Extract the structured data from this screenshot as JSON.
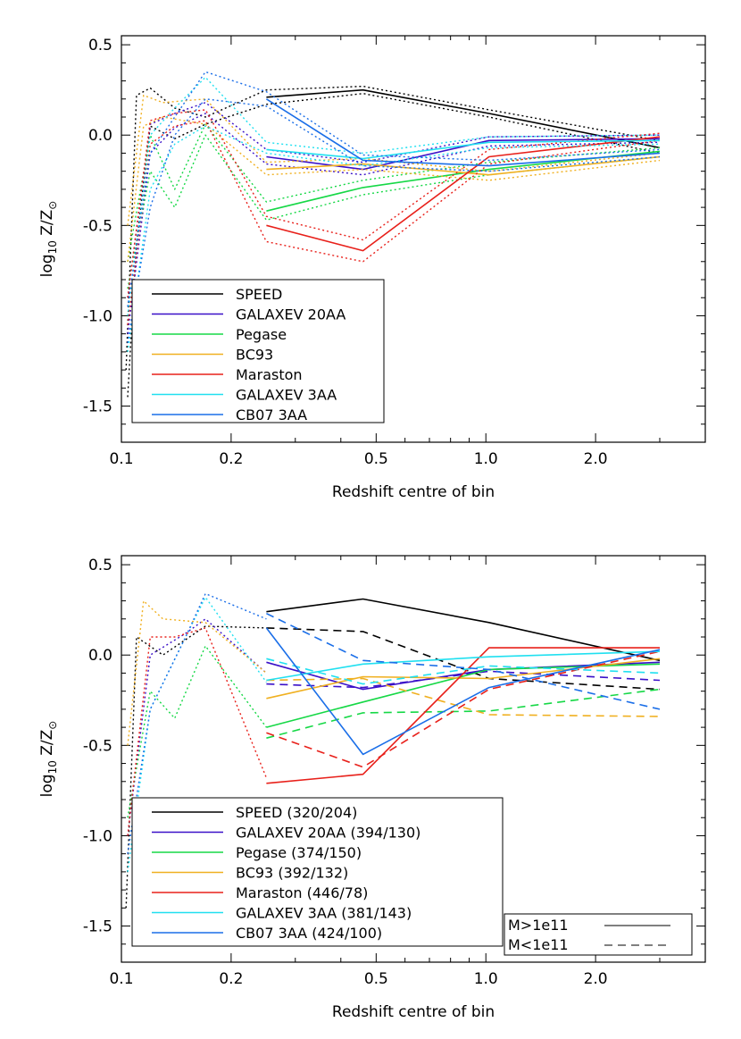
{
  "chart_data": [
    {
      "type": "line",
      "xlabel": "Redshift centre of bin",
      "ylabel_main": "log",
      "ylabel_sub": "10",
      "ylabel_rest": " Z/Z",
      "ylabel_sym": "⊙",
      "xscale": "log",
      "xlim": [
        0.1,
        4.0
      ],
      "ylim": [
        -1.7,
        0.55
      ],
      "xticks": [
        0.1,
        0.2,
        0.5,
        1.0,
        2.0
      ],
      "xtick_labels": [
        "0.1",
        "0.2",
        "0.5",
        "1.0",
        "2.0"
      ],
      "yticks": [
        -1.5,
        -1.0,
        -0.5,
        0.0,
        0.5
      ],
      "ytick_labels": [
        "-1.5",
        "-1.0",
        "-0.5",
        "0.0",
        "0.5"
      ],
      "legend_position": "lower-left",
      "series": [
        {
          "name": "SPEED",
          "color": "#000000",
          "solid": {
            "x": [
              0.25,
              0.46,
              1.02,
              3.0
            ],
            "y": [
              0.21,
              0.25,
              0.12,
              -0.07
            ]
          },
          "upper": {
            "x": [
              0.103,
              0.11,
              0.12,
              0.14,
              0.17,
              0.25,
              0.46,
              1.02,
              3.0
            ],
            "y": [
              -1.3,
              0.22,
              0.26,
              0.15,
              0.1,
              0.25,
              0.27,
              0.14,
              -0.03
            ]
          },
          "lower": {
            "x": [
              0.104,
              0.11,
              0.12,
              0.14,
              0.17,
              0.25,
              0.46,
              1.02,
              3.0
            ],
            "y": [
              -1.45,
              -0.6,
              0.05,
              -0.02,
              0.06,
              0.17,
              0.23,
              0.1,
              -0.1
            ]
          }
        },
        {
          "name": "GALAXEV 20AA",
          "color": "#3a10c8",
          "solid": {
            "x": [
              0.25,
              0.46,
              1.02,
              3.0
            ],
            "y": [
              -0.12,
              -0.19,
              -0.03,
              -0.02
            ]
          },
          "upper": {
            "x": [
              0.104,
              0.12,
              0.14,
              0.17,
              0.25,
              0.46,
              1.02,
              3.0
            ],
            "y": [
              -0.9,
              0.06,
              0.12,
              0.18,
              -0.08,
              -0.15,
              -0.01,
              0.0
            ]
          },
          "lower": {
            "x": [
              0.104,
              0.12,
              0.14,
              0.17,
              0.25,
              0.46,
              1.02,
              3.0
            ],
            "y": [
              -1.1,
              -0.1,
              0.04,
              0.12,
              -0.16,
              -0.22,
              -0.06,
              -0.04
            ]
          }
        },
        {
          "name": "Pegase",
          "color": "#16d846",
          "solid": {
            "x": [
              0.25,
              0.46,
              1.02,
              3.0
            ],
            "y": [
              -0.42,
              -0.29,
              -0.19,
              -0.09
            ]
          },
          "upper": {
            "x": [
              0.104,
              0.12,
              0.14,
              0.17,
              0.25,
              0.46,
              1.02,
              3.0
            ],
            "y": [
              -0.7,
              0.0,
              -0.3,
              0.06,
              -0.37,
              -0.25,
              -0.15,
              -0.07
            ]
          },
          "lower": {
            "x": [
              0.104,
              0.12,
              0.14,
              0.17,
              0.25,
              0.46,
              1.02,
              3.0
            ],
            "y": [
              -0.85,
              -0.2,
              -0.4,
              0.0,
              -0.47,
              -0.33,
              -0.22,
              -0.12
            ]
          }
        },
        {
          "name": "BC93",
          "color": "#f0b020",
          "solid": {
            "x": [
              0.25,
              0.46,
              1.02,
              3.0
            ],
            "y": [
              -0.19,
              -0.16,
              -0.22,
              -0.12
            ]
          },
          "upper": {
            "x": [
              0.104,
              0.115,
              0.13,
              0.17,
              0.25,
              0.46,
              1.02,
              3.0
            ],
            "y": [
              -0.5,
              0.22,
              0.18,
              0.2,
              -0.15,
              -0.13,
              -0.2,
              -0.1
            ]
          },
          "lower": {
            "x": [
              0.104,
              0.115,
              0.13,
              0.17,
              0.25,
              0.46,
              1.02,
              3.0
            ],
            "y": [
              -0.7,
              0.05,
              0.1,
              0.06,
              -0.22,
              -0.19,
              -0.25,
              -0.14
            ]
          }
        },
        {
          "name": "Maraston",
          "color": "#e8201a",
          "solid": {
            "x": [
              0.25,
              0.46,
              1.02,
              3.0
            ],
            "y": [
              -0.5,
              -0.64,
              -0.12,
              -0.01
            ]
          },
          "upper": {
            "x": [
              0.104,
              0.12,
              0.14,
              0.17,
              0.25,
              0.46,
              1.02,
              3.0
            ],
            "y": [
              -0.9,
              0.08,
              0.12,
              0.14,
              -0.45,
              -0.58,
              -0.08,
              0.01
            ]
          },
          "lower": {
            "x": [
              0.104,
              0.12,
              0.14,
              0.17,
              0.25,
              0.46,
              1.02,
              3.0
            ],
            "y": [
              -1.05,
              -0.05,
              0.05,
              0.08,
              -0.59,
              -0.7,
              -0.16,
              -0.03
            ]
          }
        },
        {
          "name": "GALAXEV 3AA",
          "color": "#20e0f0",
          "solid": {
            "x": [
              0.25,
              0.46,
              1.02,
              3.0
            ],
            "y": [
              -0.08,
              -0.13,
              -0.04,
              -0.03
            ]
          },
          "upper": {
            "x": [
              0.104,
              0.12,
              0.14,
              0.17,
              0.25,
              0.46,
              1.02,
              3.0
            ],
            "y": [
              -1.0,
              0.0,
              0.15,
              0.32,
              -0.04,
              -0.1,
              -0.01,
              0.0
            ]
          },
          "lower": {
            "x": [
              0.104,
              0.12,
              0.14,
              0.17,
              0.25,
              0.46,
              1.02,
              3.0
            ],
            "y": [
              -1.2,
              -0.3,
              -0.05,
              0.05,
              -0.1,
              -0.17,
              -0.07,
              -0.05
            ]
          }
        },
        {
          "name": "CB07 3AA",
          "color": "#1a6ee8",
          "solid": {
            "x": [
              0.25,
              0.46,
              1.02,
              3.0
            ],
            "y": [
              0.2,
              -0.14,
              -0.17,
              -0.1
            ]
          },
          "upper": {
            "x": [
              0.104,
              0.12,
              0.14,
              0.17,
              0.25,
              0.46,
              1.02,
              3.0
            ],
            "y": [
              -0.95,
              -0.1,
              0.1,
              0.35,
              0.24,
              -0.11,
              -0.14,
              -0.08
            ]
          },
          "lower": {
            "x": [
              0.104,
              0.12,
              0.14,
              0.17,
              0.25,
              0.46,
              1.02,
              3.0
            ],
            "y": [
              -1.15,
              -0.4,
              0.0,
              0.2,
              0.16,
              -0.17,
              -0.2,
              -0.12
            ]
          }
        }
      ]
    },
    {
      "type": "line",
      "xlabel": "Redshift centre of bin",
      "ylabel_main": "log",
      "ylabel_sub": "10",
      "ylabel_rest": " Z/Z",
      "ylabel_sym": "⊙",
      "xscale": "log",
      "xlim": [
        0.1,
        4.0
      ],
      "ylim": [
        -1.7,
        0.55
      ],
      "xticks": [
        0.1,
        0.2,
        0.5,
        1.0,
        2.0
      ],
      "xtick_labels": [
        "0.1",
        "0.2",
        "0.5",
        "1.0",
        "2.0"
      ],
      "yticks": [
        -1.5,
        -1.0,
        -0.5,
        0.0,
        0.5
      ],
      "ytick_labels": [
        "-1.5",
        "-1.0",
        "-0.5",
        "0.0",
        "0.5"
      ],
      "legend_position": "lower-left",
      "style_legend": {
        "high_label": "M>1e11",
        "low_label": "M<1e11"
      },
      "series": [
        {
          "name": "SPEED (320/204)",
          "color": "#000000",
          "solid": {
            "x": [
              0.25,
              0.46,
              1.02,
              3.0
            ],
            "y": [
              0.24,
              0.31,
              0.18,
              -0.03
            ]
          },
          "dashed": {
            "x": [
              0.25,
              0.46,
              1.02,
              3.0
            ],
            "y": [
              0.15,
              0.13,
              -0.13,
              -0.19
            ]
          },
          "dotted": {
            "x": [
              0.103,
              0.11,
              0.13,
              0.17,
              0.25
            ],
            "y": [
              -1.4,
              0.1,
              0.0,
              0.16,
              0.15
            ]
          }
        },
        {
          "name": "GALAXEV 20AA (394/130)",
          "color": "#3a10c8",
          "solid": {
            "x": [
              0.25,
              0.46,
              1.02,
              3.0
            ],
            "y": [
              -0.04,
              -0.19,
              -0.08,
              -0.04
            ]
          },
          "dashed": {
            "x": [
              0.25,
              0.46,
              1.02,
              3.0
            ],
            "y": [
              -0.16,
              -0.18,
              -0.09,
              -0.14
            ]
          },
          "dotted": {
            "x": [
              0.104,
              0.12,
              0.15,
              0.17,
              0.25
            ],
            "y": [
              -1.0,
              0.0,
              0.12,
              0.2,
              -0.1
            ]
          }
        },
        {
          "name": "Pegase (374/150)",
          "color": "#16d846",
          "solid": {
            "x": [
              0.25,
              0.46,
              1.02,
              3.0
            ],
            "y": [
              -0.4,
              -0.26,
              -0.08,
              -0.05
            ]
          },
          "dashed": {
            "x": [
              0.25,
              0.46,
              1.02,
              3.0
            ],
            "y": [
              -0.46,
              -0.32,
              -0.31,
              -0.19
            ]
          },
          "dotted": {
            "x": [
              0.104,
              0.12,
              0.14,
              0.17,
              0.25
            ],
            "y": [
              -0.9,
              -0.2,
              -0.35,
              0.05,
              -0.4
            ]
          }
        },
        {
          "name": "BC93 (392/132)",
          "color": "#f0b020",
          "solid": {
            "x": [
              0.25,
              0.46,
              1.02,
              3.0
            ],
            "y": [
              -0.24,
              -0.12,
              -0.13,
              -0.02
            ]
          },
          "dashed": {
            "x": [
              0.25,
              0.46,
              1.02,
              3.0
            ],
            "y": [
              -0.14,
              -0.13,
              -0.33,
              -0.34
            ]
          },
          "dotted": {
            "x": [
              0.104,
              0.115,
              0.13,
              0.17,
              0.25
            ],
            "y": [
              -0.5,
              0.3,
              0.2,
              0.18,
              -0.1
            ]
          }
        },
        {
          "name": "Maraston (446/78)",
          "color": "#e8201a",
          "solid": {
            "x": [
              0.25,
              0.46,
              1.02,
              3.0
            ],
            "y": [
              -0.71,
              -0.66,
              0.04,
              0.04
            ]
          },
          "dashed": {
            "x": [
              0.25,
              0.46,
              1.02,
              3.0
            ],
            "y": [
              -0.43,
              -0.62,
              -0.19,
              0.02
            ]
          },
          "dotted": {
            "x": [
              0.104,
              0.12,
              0.14,
              0.17,
              0.25
            ],
            "y": [
              -1.0,
              0.1,
              0.1,
              0.15,
              -0.68
            ]
          }
        },
        {
          "name": "GALAXEV 3AA (381/143)",
          "color": "#20e0f0",
          "solid": {
            "x": [
              0.25,
              0.46,
              1.02,
              3.0
            ],
            "y": [
              -0.14,
              -0.05,
              -0.01,
              0.02
            ]
          },
          "dashed": {
            "x": [
              0.25,
              0.46,
              1.02,
              3.0
            ],
            "y": [
              -0.02,
              -0.16,
              -0.06,
              -0.1
            ]
          },
          "dotted": {
            "x": [
              0.104,
              0.12,
              0.15,
              0.17,
              0.25
            ],
            "y": [
              -1.2,
              -0.3,
              0.1,
              0.32,
              -0.15
            ]
          }
        },
        {
          "name": "CB07 3AA (424/100)",
          "color": "#1a6ee8",
          "solid": {
            "x": [
              0.25,
              0.46,
              1.02,
              3.0
            ],
            "y": [
              0.15,
              -0.55,
              -0.18,
              0.03
            ]
          },
          "dashed": {
            "x": [
              0.25,
              0.46,
              1.02,
              3.0
            ],
            "y": [
              0.23,
              -0.03,
              -0.08,
              -0.3
            ]
          },
          "dotted": {
            "x": [
              0.104,
              0.12,
              0.15,
              0.17,
              0.25
            ],
            "y": [
              -1.1,
              -0.3,
              0.1,
              0.34,
              0.2
            ]
          }
        }
      ]
    }
  ]
}
